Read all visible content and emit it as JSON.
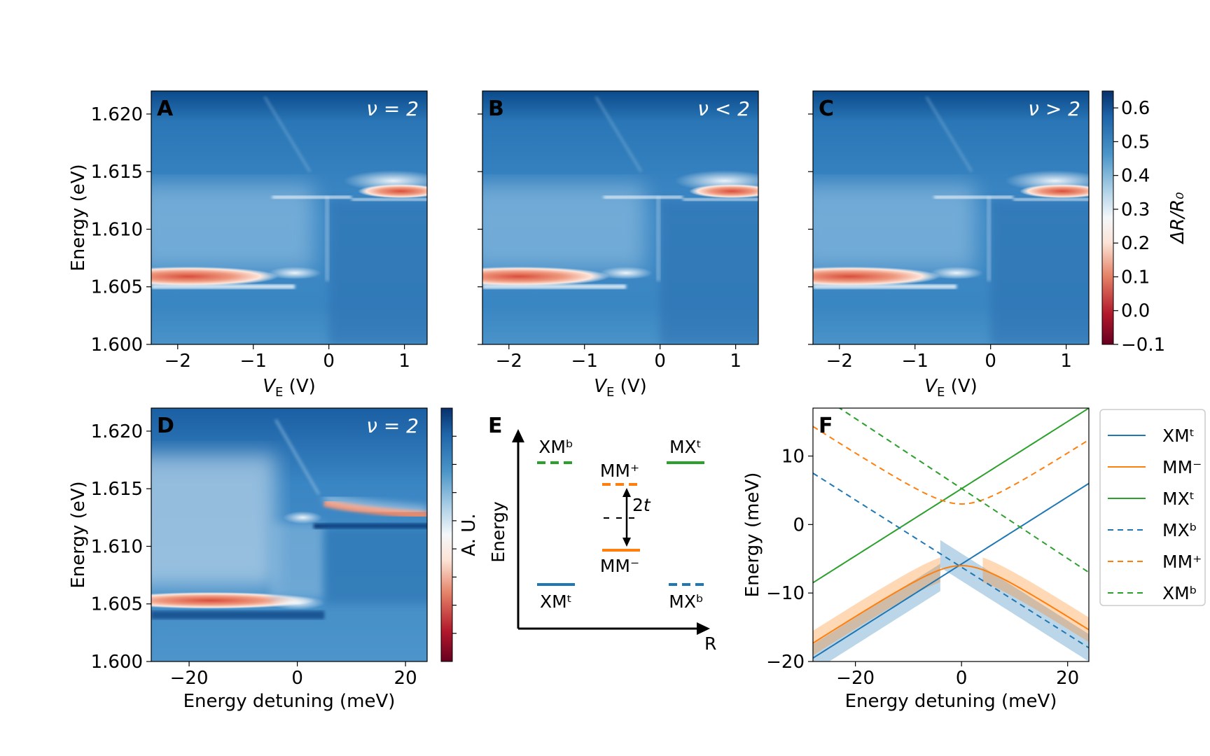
{
  "colors": {
    "high": "#08306b",
    "mid_blue": "#2f80c0",
    "light": "#ffffff",
    "low": "#b2182b",
    "deep_low": "#67001f",
    "blue_series": "#1f77b4",
    "orange_series": "#ff7f0e",
    "green_series": "#2ca02c"
  },
  "chart_data": [
    {
      "type": "heatmap",
      "panel": "A",
      "annotation": "ν = 2",
      "xlabel": "V_E (V)",
      "ylabel": "Energy (eV)",
      "xlim": [
        -2.35,
        1.3
      ],
      "ylim": [
        1.6,
        1.622
      ],
      "xticks": [
        "−2",
        "−1",
        "0",
        "1"
      ],
      "yticks": [
        "1.600",
        "1.605",
        "1.610",
        "1.615",
        "1.620"
      ],
      "features": [
        {
          "desc": "lower resonance",
          "x_range": [
            -2.35,
            -0.7
          ],
          "energy": 1.6058
        },
        {
          "desc": "upper resonance",
          "x_range": [
            0.3,
            1.3
          ],
          "energy": 1.6133
        },
        {
          "desc": "step",
          "x": 0.0,
          "energy_range": [
            1.6055,
            1.6128
          ]
        }
      ]
    },
    {
      "type": "heatmap",
      "panel": "B",
      "annotation": "ν < 2",
      "xlabel": "V_E (V)",
      "xlim": [
        -2.35,
        1.3
      ],
      "ylim": [
        1.6,
        1.622
      ],
      "xticks": [
        "−2",
        "−1",
        "0",
        "1"
      ]
    },
    {
      "type": "heatmap",
      "panel": "C",
      "annotation": "ν > 2",
      "xlabel": "V_E (V)",
      "xlim": [
        -2.35,
        1.3
      ],
      "ylim": [
        1.6,
        1.622
      ],
      "xticks": [
        "−2",
        "−1",
        "0",
        "1"
      ],
      "colorbar": {
        "label": "ΔR/R₀",
        "range": [
          -0.1,
          0.65
        ],
        "ticks": [
          "−0.1",
          "0.0",
          "0.1",
          "0.2",
          "0.3",
          "0.4",
          "0.5",
          "0.6"
        ]
      }
    },
    {
      "type": "heatmap",
      "panel": "D",
      "annotation": "ν = 2",
      "xlabel": "Energy detuning (meV)",
      "ylabel": "Energy (eV)",
      "xlim": [
        -27,
        24
      ],
      "ylim": [
        1.6,
        1.622
      ],
      "xticks": [
        "−20",
        "0",
        "20"
      ],
      "yticks": [
        "1.600",
        "1.605",
        "1.610",
        "1.615",
        "1.620"
      ],
      "colorbar": {
        "label": "A. U."
      }
    },
    {
      "type": "diagram",
      "panel": "E",
      "ylabel": "Energy",
      "xlabel": "R",
      "levels": [
        {
          "name": "XMᵇ",
          "style": "dashed",
          "color": "green"
        },
        {
          "name": "MM⁺",
          "style": "dashed",
          "color": "orange"
        },
        {
          "name": "MXᵗ",
          "style": "solid",
          "color": "green"
        },
        {
          "name": "MM⁻",
          "style": "solid",
          "color": "orange"
        },
        {
          "name": "XMᵗ",
          "style": "solid",
          "color": "blue"
        },
        {
          "name": "MXᵇ",
          "style": "dashed",
          "color": "blue"
        }
      ],
      "splitting_label": "2t"
    },
    {
      "type": "line",
      "panel": "F",
      "xlabel": "Energy detuning (meV)",
      "ylabel": "Energy (meV)",
      "xlim": [
        -28,
        24
      ],
      "ylim": [
        -20,
        17
      ],
      "xticks": [
        "−20",
        "0",
        "20"
      ],
      "yticks": [
        "−20",
        "−10",
        "0",
        "10"
      ],
      "series": [
        {
          "name": "XMᵗ",
          "style": "solid",
          "color": "blue",
          "x": [
            -28,
            24
          ],
          "y": [
            -19.5,
            6
          ]
        },
        {
          "name": "MM⁻",
          "style": "solid",
          "color": "orange",
          "t": 3,
          "center": -6
        },
        {
          "name": "MXᵗ",
          "style": "solid",
          "color": "green",
          "x": [
            -28,
            24
          ],
          "y": [
            -8.5,
            17
          ]
        },
        {
          "name": "MXᵇ",
          "style": "dashed",
          "color": "blue",
          "x": [
            -28,
            24
          ],
          "y": [
            7.5,
            -18
          ]
        },
        {
          "name": "MM⁺",
          "style": "dashed",
          "color": "orange",
          "t": 3,
          "center": 6
        },
        {
          "name": "XMᵇ",
          "style": "dashed",
          "color": "green",
          "x": [
            -22,
            24
          ],
          "y": [
            16.5,
            -7
          ]
        }
      ]
    }
  ]
}
